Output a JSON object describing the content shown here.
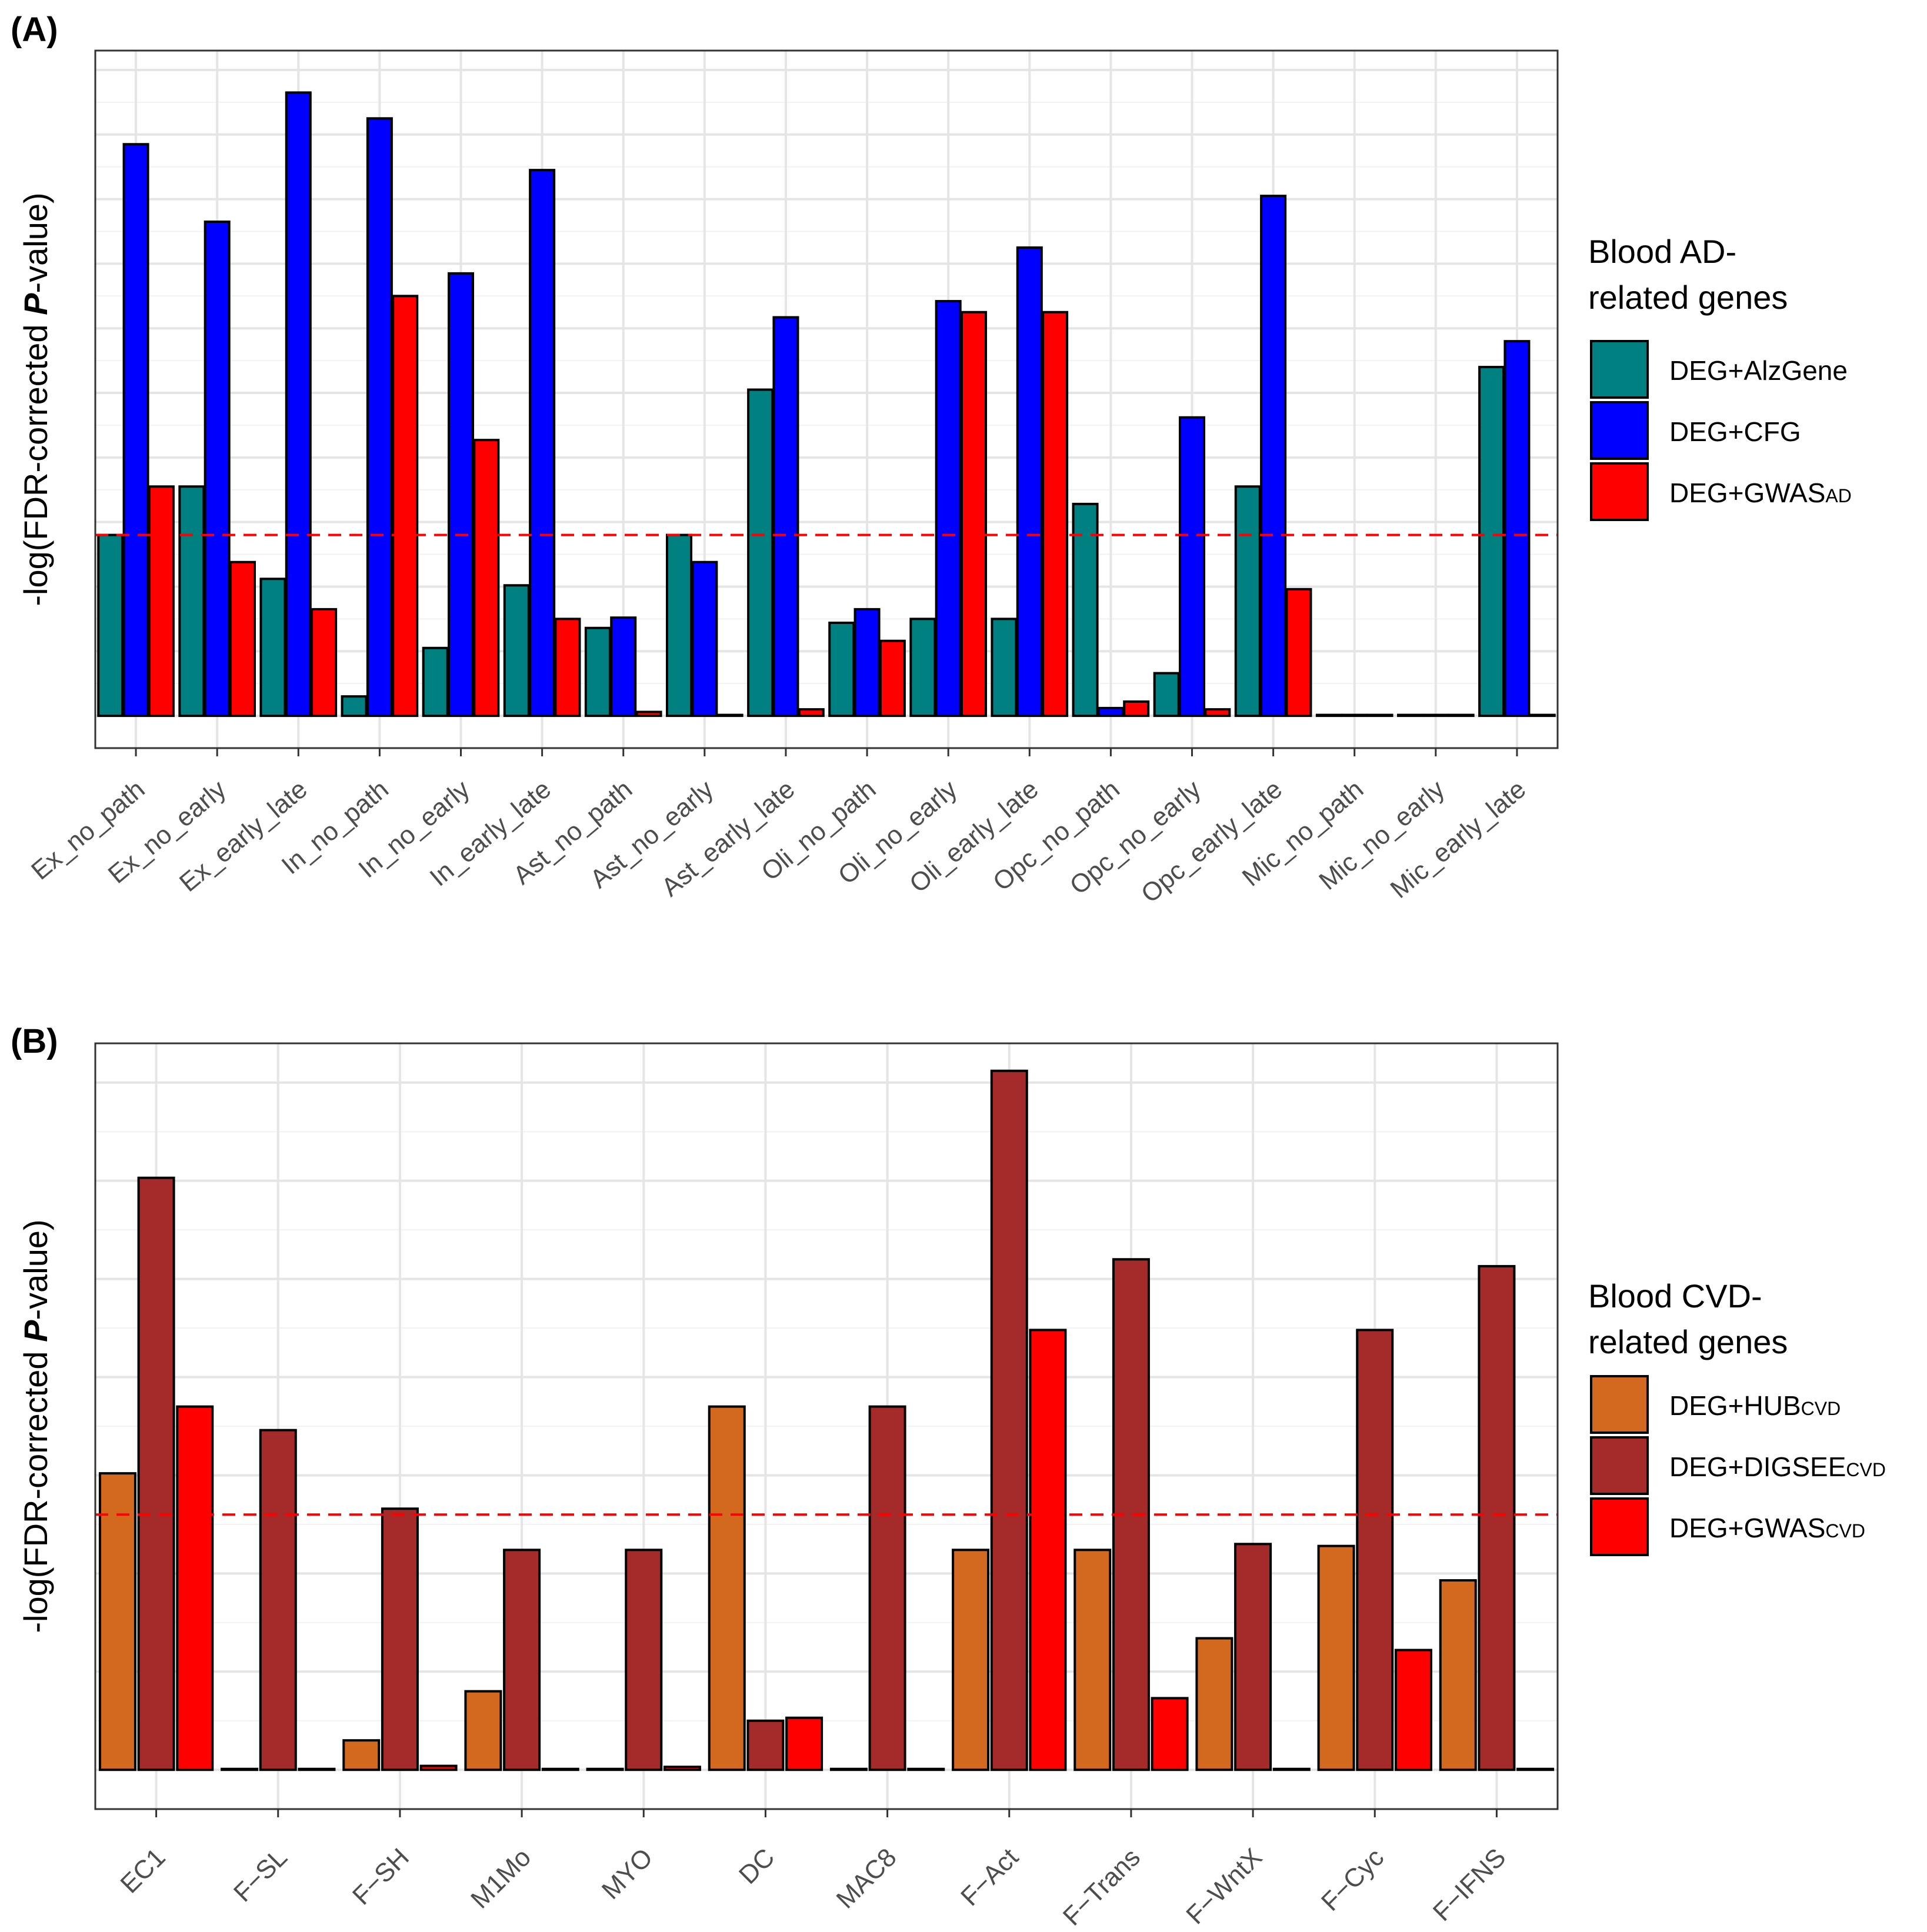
{
  "chart_data": [
    {
      "type": "bar",
      "panel_label": "(A)",
      "ylabel_parts": [
        "-log(FDR-corrected ",
        "P",
        "-value)"
      ],
      "threshold_line": 2.8,
      "ylim": [
        -0.5,
        10.3
      ],
      "categories": [
        "Ex_no_path",
        "Ex_no_early",
        "Ex_early_late",
        "In_no_path",
        "In_no_early",
        "In_early_late",
        "Ast_no_path",
        "Ast_no_early",
        "Ast_early_late",
        "Oli_no_path",
        "Oli_no_early",
        "Oli_early_late",
        "Opc_no_path",
        "Opc_no_early",
        "Opc_early_late",
        "Mic_no_path",
        "Mic_no_early",
        "Mic_early_late"
      ],
      "legend": {
        "title_lines": [
          "Blood AD-",
          "related genes"
        ],
        "position": "right"
      },
      "series": [
        {
          "name": "DEG+AlzGene",
          "label_main": "DEG+AlzGene",
          "label_sub": "",
          "color": "#008080",
          "values": [
            2.8,
            3.55,
            2.12,
            0.3,
            1.05,
            2.02,
            1.36,
            2.8,
            5.05,
            1.44,
            1.5,
            1.5,
            3.28,
            0.66,
            3.55,
            0,
            0,
            5.4
          ]
        },
        {
          "name": "DEG+CFG",
          "label_main": "DEG+CFG",
          "label_sub": "",
          "color": "#0000ff",
          "values": [
            8.85,
            7.65,
            9.65,
            9.25,
            6.85,
            8.45,
            1.52,
            2.38,
            6.17,
            1.65,
            6.42,
            7.25,
            0.12,
            4.62,
            8.05,
            0,
            0,
            5.8
          ]
        },
        {
          "name": "DEG+GWAS_AD",
          "label_main": "DEG+GWAS",
          "label_sub": "AD",
          "color": "#ff0000",
          "values": [
            3.55,
            2.38,
            1.65,
            6.5,
            4.27,
            1.5,
            0.06,
            0,
            0.1,
            1.16,
            6.25,
            6.25,
            0.22,
            0.1,
            1.96,
            0,
            0,
            0
          ]
        }
      ]
    },
    {
      "type": "bar",
      "panel_label": "(B)",
      "ylabel_parts": [
        "-log(FDR-corrected ",
        "P",
        "-value)"
      ],
      "threshold_line": 2.6,
      "ylim": [
        -0.4,
        7.4
      ],
      "categories": [
        "EC1",
        "F−SL",
        "F−SH",
        "M1Mo",
        "MYO",
        "DC",
        "MAC8",
        "F−Act",
        "F−Trans",
        "F−WntX",
        "F−Cyc",
        "F−IFNS"
      ],
      "legend": {
        "title_lines": [
          "Blood CVD-",
          "related genes"
        ],
        "position": "right"
      },
      "series": [
        {
          "name": "DEG+HUB_CVD",
          "label_main": "DEG+HUB",
          "label_sub": "CVD",
          "color": "#d2691e",
          "values": [
            3.02,
            0,
            0.3,
            0.8,
            0,
            3.7,
            0,
            2.24,
            2.24,
            1.34,
            2.28,
            1.93
          ]
        },
        {
          "name": "DEG+DIGSEE_CVD",
          "label_main": "DEG+DIGSEE",
          "label_sub": "CVD",
          "color": "#a52a2a",
          "values": [
            6.03,
            3.46,
            2.66,
            2.24,
            2.24,
            0.5,
            3.7,
            7.12,
            5.2,
            2.3,
            4.48,
            5.13
          ]
        },
        {
          "name": "DEG+GWAS_CVD",
          "label_main": "DEG+GWAS",
          "label_sub": "CVD",
          "color": "#ff0000",
          "values": [
            3.7,
            0,
            0.04,
            0,
            0.03,
            0.53,
            0,
            4.48,
            0.73,
            0,
            1.22,
            0
          ]
        }
      ]
    }
  ]
}
